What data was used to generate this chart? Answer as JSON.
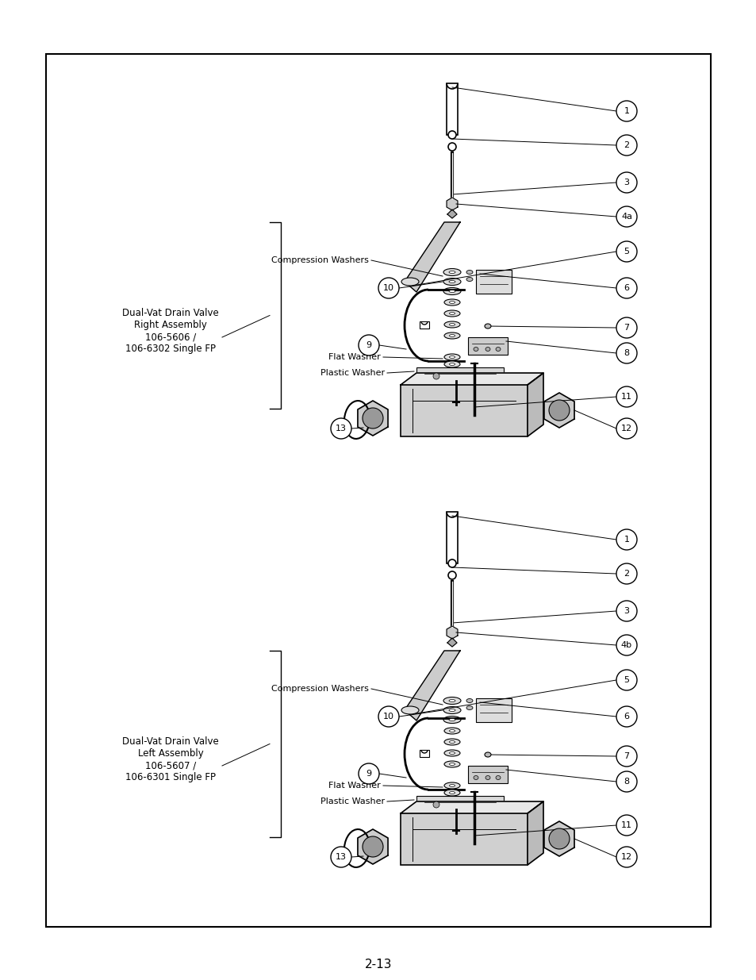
{
  "page_bg": "#ffffff",
  "border_color": "#000000",
  "page_number": "2-13",
  "top_diagram": {
    "label_line1": "Dual-Vat Drain Valve",
    "label_line2": "Right Assembly",
    "label_line3": "106-5606 /",
    "label_line4": "106-6302 Single FP",
    "num4": "4a"
  },
  "bot_diagram": {
    "label_line1": "Dual-Vat Drain Valve",
    "label_line2": "Left Assembly",
    "label_line3": "106-5607 /",
    "label_line4": "106-6301 Single FP",
    "num4": "4b"
  }
}
